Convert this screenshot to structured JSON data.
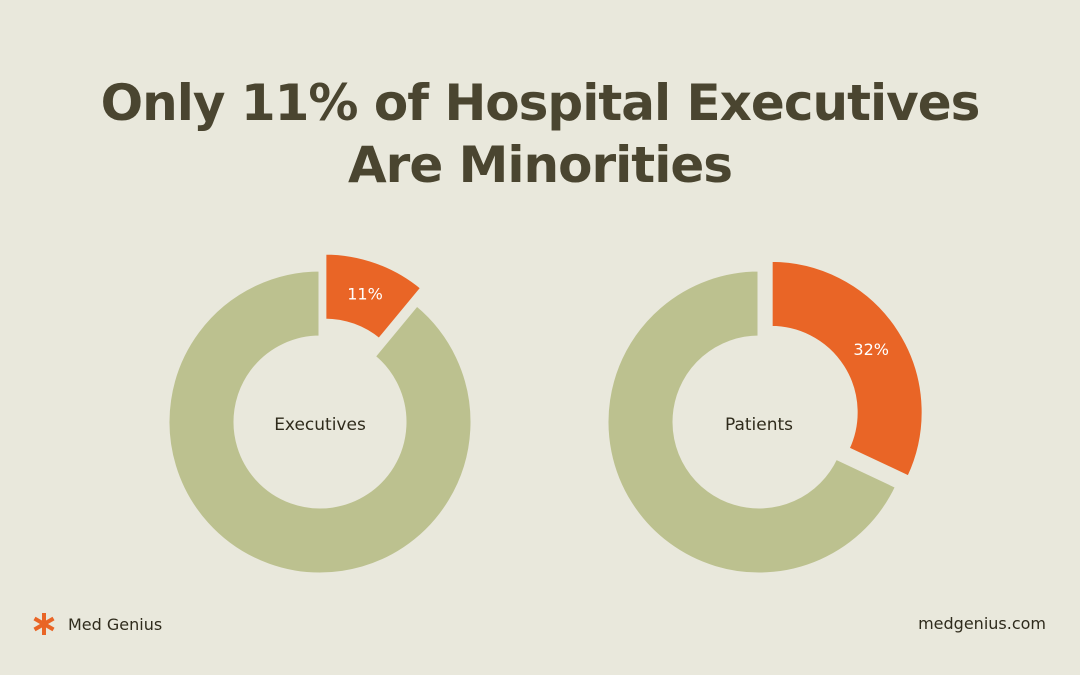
{
  "title": {
    "line1": "Only 11% of Hospital Executives",
    "line2": "Are Minorities"
  },
  "colors": {
    "background": "#e9e8dc",
    "highlight": "#e96526",
    "remainder": "#bcc18f",
    "text": "#4a4530"
  },
  "chart_data": [
    {
      "type": "pie",
      "variant": "donut",
      "center_label": "Executives",
      "slices": [
        {
          "label": "11%",
          "value": 11,
          "color": "#e96526",
          "exploded": true
        },
        {
          "label": "",
          "value": 89,
          "color": "#bcc18f",
          "exploded": false
        }
      ]
    },
    {
      "type": "pie",
      "variant": "donut",
      "center_label": "Patients",
      "slices": [
        {
          "label": "32%",
          "value": 32,
          "color": "#e96526",
          "exploded": true
        },
        {
          "label": "",
          "value": 68,
          "color": "#bcc18f",
          "exploded": false
        }
      ]
    }
  ],
  "footer": {
    "brand": "Med Genius",
    "brand_icon": "asterisk-icon",
    "url": "medgenius.com"
  }
}
